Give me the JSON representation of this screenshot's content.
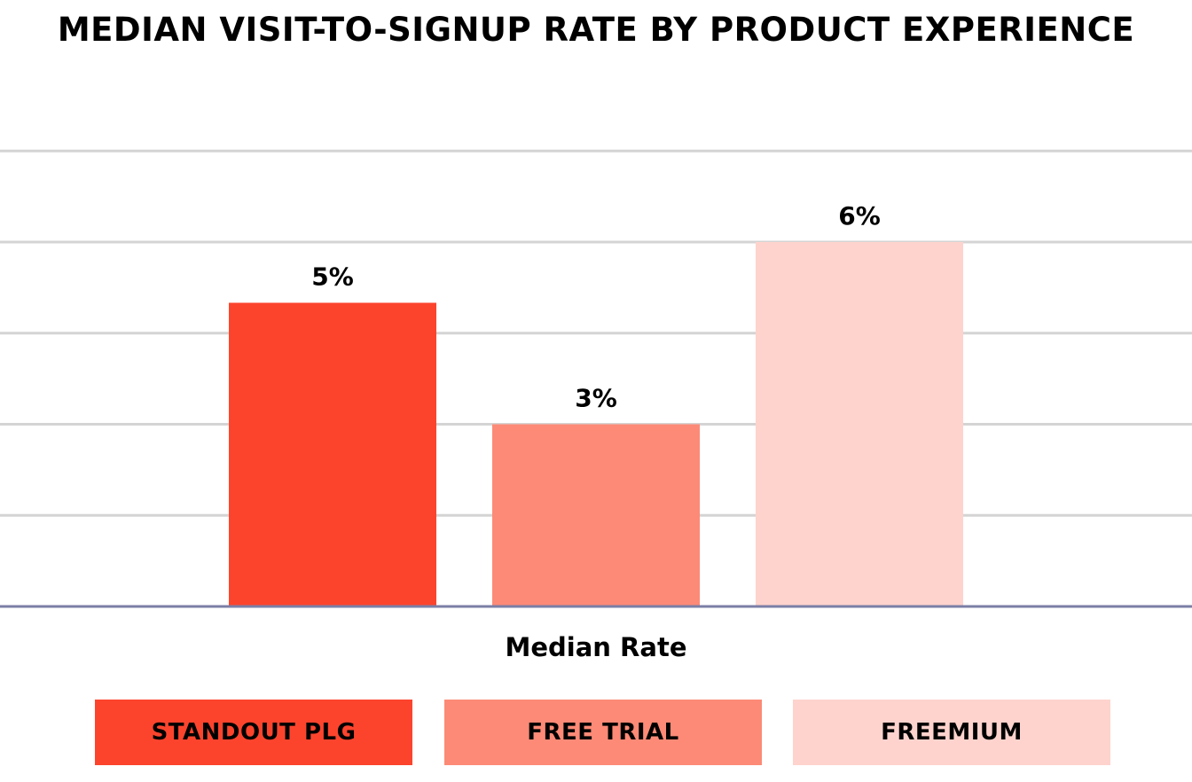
{
  "chart_data": {
    "type": "bar",
    "title": "MEDIAN VISIT-TO-SIGNUP RATE BY PRODUCT EXPERIENCE",
    "xlabel": "Median Rate",
    "ylabel": "",
    "ylim": [
      0,
      7.5
    ],
    "grid": true,
    "legend_position": "bottom",
    "categories": [
      "Median Rate"
    ],
    "series": [
      {
        "name": "STANDOUT PLG",
        "values": [
          5
        ],
        "label": "5%",
        "color": "#fc442d"
      },
      {
        "name": "FREE TRIAL",
        "values": [
          3
        ],
        "label": "3%",
        "color": "#fc8a76"
      },
      {
        "name": "FREEMIUM",
        "values": [
          6
        ],
        "label": "6%",
        "color": "#fed3cd"
      }
    ],
    "colors": {
      "gridline": "#d4d4d4",
      "baseline": "#7b7fa6"
    }
  }
}
